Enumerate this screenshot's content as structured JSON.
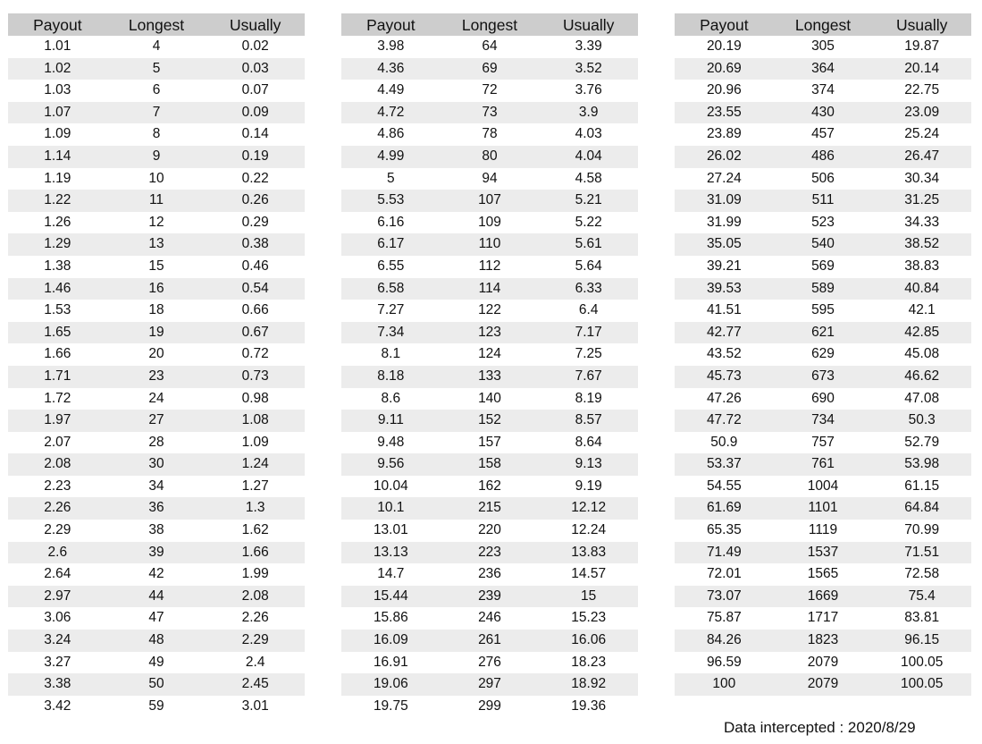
{
  "headers": [
    "Payout",
    "Longest",
    "Usually"
  ],
  "tables": [
    {
      "rows": [
        [
          "1.01",
          "4",
          "0.02"
        ],
        [
          "1.02",
          "5",
          "0.03"
        ],
        [
          "1.03",
          "6",
          "0.07"
        ],
        [
          "1.07",
          "7",
          "0.09"
        ],
        [
          "1.09",
          "8",
          "0.14"
        ],
        [
          "1.14",
          "9",
          "0.19"
        ],
        [
          "1.19",
          "10",
          "0.22"
        ],
        [
          "1.22",
          "11",
          "0.26"
        ],
        [
          "1.26",
          "12",
          "0.29"
        ],
        [
          "1.29",
          "13",
          "0.38"
        ],
        [
          "1.38",
          "15",
          "0.46"
        ],
        [
          "1.46",
          "16",
          "0.54"
        ],
        [
          "1.53",
          "18",
          "0.66"
        ],
        [
          "1.65",
          "19",
          "0.67"
        ],
        [
          "1.66",
          "20",
          "0.72"
        ],
        [
          "1.71",
          "23",
          "0.73"
        ],
        [
          "1.72",
          "24",
          "0.98"
        ],
        [
          "1.97",
          "27",
          "1.08"
        ],
        [
          "2.07",
          "28",
          "1.09"
        ],
        [
          "2.08",
          "30",
          "1.24"
        ],
        [
          "2.23",
          "34",
          "1.27"
        ],
        [
          "2.26",
          "36",
          "1.3"
        ],
        [
          "2.29",
          "38",
          "1.62"
        ],
        [
          "2.6",
          "39",
          "1.66"
        ],
        [
          "2.64",
          "42",
          "1.99"
        ],
        [
          "2.97",
          "44",
          "2.08"
        ],
        [
          "3.06",
          "47",
          "2.26"
        ],
        [
          "3.24",
          "48",
          "2.29"
        ],
        [
          "3.27",
          "49",
          "2.4"
        ],
        [
          "3.38",
          "50",
          "2.45"
        ],
        [
          "3.42",
          "59",
          "3.01"
        ]
      ]
    },
    {
      "rows": [
        [
          "3.98",
          "64",
          "3.39"
        ],
        [
          "4.36",
          "69",
          "3.52"
        ],
        [
          "4.49",
          "72",
          "3.76"
        ],
        [
          "4.72",
          "73",
          "3.9"
        ],
        [
          "4.86",
          "78",
          "4.03"
        ],
        [
          "4.99",
          "80",
          "4.04"
        ],
        [
          "5",
          "94",
          "4.58"
        ],
        [
          "5.53",
          "107",
          "5.21"
        ],
        [
          "6.16",
          "109",
          "5.22"
        ],
        [
          "6.17",
          "110",
          "5.61"
        ],
        [
          "6.55",
          "112",
          "5.64"
        ],
        [
          "6.58",
          "114",
          "6.33"
        ],
        [
          "7.27",
          "122",
          "6.4"
        ],
        [
          "7.34",
          "123",
          "7.17"
        ],
        [
          "8.1",
          "124",
          "7.25"
        ],
        [
          "8.18",
          "133",
          "7.67"
        ],
        [
          "8.6",
          "140",
          "8.19"
        ],
        [
          "9.11",
          "152",
          "8.57"
        ],
        [
          "9.48",
          "157",
          "8.64"
        ],
        [
          "9.56",
          "158",
          "9.13"
        ],
        [
          "10.04",
          "162",
          "9.19"
        ],
        [
          "10.1",
          "215",
          "12.12"
        ],
        [
          "13.01",
          "220",
          "12.24"
        ],
        [
          "13.13",
          "223",
          "13.83"
        ],
        [
          "14.7",
          "236",
          "14.57"
        ],
        [
          "15.44",
          "239",
          "15"
        ],
        [
          "15.86",
          "246",
          "15.23"
        ],
        [
          "16.09",
          "261",
          "16.06"
        ],
        [
          "16.91",
          "276",
          "18.23"
        ],
        [
          "19.06",
          "297",
          "18.92"
        ],
        [
          "19.75",
          "299",
          "19.36"
        ]
      ]
    },
    {
      "rows": [
        [
          "20.19",
          "305",
          "19.87"
        ],
        [
          "20.69",
          "364",
          "20.14"
        ],
        [
          "20.96",
          "374",
          "22.75"
        ],
        [
          "23.55",
          "430",
          "23.09"
        ],
        [
          "23.89",
          "457",
          "25.24"
        ],
        [
          "26.02",
          "486",
          "26.47"
        ],
        [
          "27.24",
          "506",
          "30.34"
        ],
        [
          "31.09",
          "511",
          "31.25"
        ],
        [
          "31.99",
          "523",
          "34.33"
        ],
        [
          "35.05",
          "540",
          "38.52"
        ],
        [
          "39.21",
          "569",
          "38.83"
        ],
        [
          "39.53",
          "589",
          "40.84"
        ],
        [
          "41.51",
          "595",
          "42.1"
        ],
        [
          "42.77",
          "621",
          "42.85"
        ],
        [
          "43.52",
          "629",
          "45.08"
        ],
        [
          "45.73",
          "673",
          "46.62"
        ],
        [
          "47.26",
          "690",
          "47.08"
        ],
        [
          "47.72",
          "734",
          "50.3"
        ],
        [
          "50.9",
          "757",
          "52.79"
        ],
        [
          "53.37",
          "761",
          "53.98"
        ],
        [
          "54.55",
          "1004",
          "61.15"
        ],
        [
          "61.69",
          "1101",
          "64.84"
        ],
        [
          "65.35",
          "1119",
          "70.99"
        ],
        [
          "71.49",
          "1537",
          "71.51"
        ],
        [
          "72.01",
          "1565",
          "72.58"
        ],
        [
          "73.07",
          "1669",
          "75.4"
        ],
        [
          "75.87",
          "1717",
          "83.81"
        ],
        [
          "84.26",
          "1823",
          "96.15"
        ],
        [
          "96.59",
          "2079",
          "100.05"
        ],
        [
          "100",
          "2079",
          "100.05"
        ]
      ]
    }
  ],
  "footer": "Data intercepted : 2020/8/29",
  "colors": {
    "header_bg": "#cdcdcd",
    "alt_row_bg": "#ececec"
  }
}
